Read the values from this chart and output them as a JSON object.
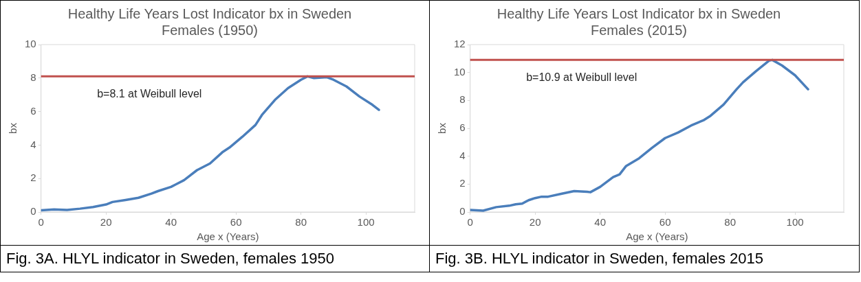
{
  "chart_data": [
    {
      "type": "line",
      "title": "Healthy Life Years Lost Indicator bx in Sweden\nFemales (1950)",
      "xlabel": "Age x (Years)",
      "ylabel": "bx",
      "xlim": [
        0,
        115
      ],
      "xticks": [
        0,
        20,
        40,
        60,
        80,
        100
      ],
      "ylim": [
        0,
        10
      ],
      "yticks": [
        0,
        2,
        4,
        6,
        8,
        10
      ],
      "grid": false,
      "legend": false,
      "marker": "none",
      "series": [
        {
          "color": "#4a7ebb",
          "x": [
            0,
            4,
            8,
            12,
            16,
            20,
            22,
            26,
            30,
            34,
            36,
            40,
            44,
            48,
            52,
            56,
            58,
            62,
            66,
            68,
            72,
            76,
            80,
            82,
            84,
            88,
            90,
            94,
            98,
            102,
            104
          ],
          "values": [
            0.1,
            0.15,
            0.12,
            0.2,
            0.3,
            0.45,
            0.6,
            0.72,
            0.85,
            1.1,
            1.25,
            1.5,
            1.9,
            2.5,
            2.9,
            3.6,
            3.85,
            4.5,
            5.2,
            5.8,
            6.7,
            7.4,
            7.9,
            8.1,
            8.0,
            8.05,
            7.9,
            7.5,
            6.9,
            6.4,
            6.1
          ]
        }
      ],
      "ref_lines": [
        {
          "axis": "y",
          "value": 8.1,
          "label": "b=8.1 at Weibull level",
          "color": "#c0504d"
        }
      ],
      "annotations": [
        "Fig. 3A. HLYL indicator in Sweden, females 1950"
      ]
    },
    {
      "type": "line",
      "title": "Healthy Life Years Lost Indicator bx in Sweden\nFemales (2015)",
      "xlabel": "Age x (Years)",
      "ylabel": "bx",
      "xlim": [
        0,
        115
      ],
      "xticks": [
        0,
        20,
        40,
        60,
        80,
        100
      ],
      "ylim": [
        0,
        12
      ],
      "yticks": [
        0,
        2,
        4,
        6,
        8,
        10,
        12
      ],
      "grid": false,
      "legend": false,
      "marker": "none",
      "series": [
        {
          "color": "#4a7ebb",
          "x": [
            0,
            4,
            8,
            12,
            14,
            16,
            18,
            20,
            22,
            24,
            28,
            32,
            36,
            37,
            40,
            44,
            46,
            48,
            52,
            56,
            60,
            64,
            68,
            72,
            74,
            78,
            82,
            84,
            88,
            92,
            93,
            96,
            100,
            104
          ],
          "values": [
            0.15,
            0.1,
            0.35,
            0.45,
            0.55,
            0.6,
            0.85,
            1.0,
            1.1,
            1.1,
            1.3,
            1.5,
            1.45,
            1.42,
            1.8,
            2.5,
            2.7,
            3.3,
            3.85,
            4.6,
            5.3,
            5.7,
            6.2,
            6.6,
            6.9,
            7.7,
            8.8,
            9.3,
            10.1,
            10.85,
            10.9,
            10.5,
            9.8,
            8.8
          ]
        }
      ],
      "ref_lines": [
        {
          "axis": "y",
          "value": 10.9,
          "label": "b=10.9 at Weibull level",
          "color": "#c0504d"
        }
      ],
      "annotations": [
        "Fig. 3B. HLYL indicator in Sweden, females 2015"
      ]
    }
  ]
}
